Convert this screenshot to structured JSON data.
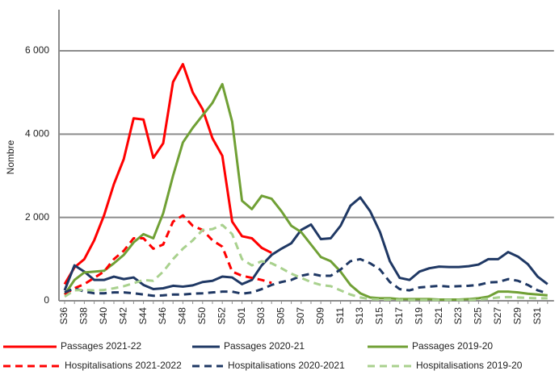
{
  "chart_data": {
    "type": "line",
    "y_label": "Nombre",
    "categories": [
      "S36",
      null,
      "S38",
      null,
      "S40",
      null,
      "S42",
      null,
      "S44",
      null,
      "S46",
      null,
      "S48",
      null,
      "S50",
      null,
      "S52",
      null,
      "S01",
      null,
      "S03",
      null,
      "S05",
      null,
      "S07",
      null,
      "S09",
      null,
      "S11",
      null,
      "S13",
      null,
      "S15",
      null,
      "S17",
      null,
      "S19",
      null,
      "S21",
      null,
      "S23",
      null,
      "S25",
      null,
      "S27",
      null,
      "S29",
      null,
      "S31",
      null
    ],
    "ylim": [
      0,
      6000
    ],
    "yticks": [
      {
        "value": 0,
        "label": "0"
      },
      {
        "value": 2000,
        "label": "2 000"
      },
      {
        "value": 4000,
        "label": "4 000"
      },
      {
        "value": 6000,
        "label": "6 000"
      }
    ],
    "grid": true,
    "legend": "bottom",
    "series": [
      {
        "name": "Passages 2021-22",
        "color": "#ff0000",
        "dashed": false,
        "values": [
          400,
          800,
          1000,
          1450,
          2050,
          2800,
          3400,
          4380,
          4350,
          3430,
          3780,
          5250,
          5680,
          5000,
          4600,
          3900,
          3480,
          1900,
          1550,
          1500,
          1270,
          1150,
          null,
          null,
          null,
          null,
          null,
          null,
          null,
          null,
          null,
          null,
          null,
          null,
          null,
          null,
          null,
          null,
          null,
          null,
          null,
          null,
          null,
          null,
          null,
          null,
          null,
          null,
          null,
          null
        ]
      },
      {
        "name": "Passages 2020-21",
        "color": "#1f3864",
        "dashed": false,
        "values": [
          250,
          850,
          700,
          500,
          500,
          580,
          520,
          560,
          380,
          280,
          300,
          360,
          340,
          370,
          450,
          480,
          580,
          560,
          400,
          500,
          850,
          1100,
          1250,
          1380,
          1700,
          1830,
          1480,
          1500,
          1800,
          2280,
          2480,
          2150,
          1650,
          950,
          550,
          500,
          700,
          780,
          820,
          810,
          810,
          830,
          870,
          1000,
          1000,
          1170,
          1060,
          880,
          580,
          400
        ]
      },
      {
        "name": "Passages 2019-20",
        "color": "#70a035",
        "dashed": false,
        "values": [
          150,
          500,
          680,
          700,
          720,
          900,
          1100,
          1400,
          1600,
          1500,
          2100,
          3000,
          3800,
          4150,
          4450,
          4750,
          5200,
          4300,
          2400,
          2200,
          2520,
          2450,
          2150,
          1800,
          1650,
          1350,
          1050,
          950,
          700,
          380,
          180,
          80,
          60,
          60,
          40,
          40,
          40,
          40,
          30,
          30,
          30,
          40,
          60,
          100,
          220,
          220,
          200,
          170,
          150,
          130
        ]
      },
      {
        "name": "Hospitalisations 2021-2022",
        "color": "#ff0000",
        "dashed": true,
        "values": [
          150,
          300,
          400,
          550,
          700,
          1000,
          1200,
          1500,
          1500,
          1250,
          1350,
          1900,
          2050,
          1800,
          1700,
          1450,
          1300,
          700,
          600,
          550,
          500,
          430,
          null,
          null,
          null,
          null,
          null,
          null,
          null,
          null,
          null,
          null,
          null,
          null,
          null,
          null,
          null,
          null,
          null,
          null,
          null,
          null,
          null,
          null,
          null,
          null,
          null,
          null,
          null,
          null
        ]
      },
      {
        "name": "Hospitalisations 2020-2021",
        "color": "#1f3864",
        "dashed": true,
        "values": [
          200,
          300,
          220,
          180,
          180,
          200,
          200,
          180,
          150,
          120,
          130,
          150,
          150,
          170,
          180,
          200,
          220,
          220,
          170,
          200,
          280,
          380,
          450,
          500,
          600,
          650,
          600,
          600,
          750,
          950,
          1000,
          900,
          750,
          450,
          280,
          250,
          320,
          340,
          360,
          340,
          350,
          360,
          380,
          440,
          450,
          520,
          480,
          380,
          250,
          180
        ]
      },
      {
        "name": "Hospitalisations 2019-20",
        "color": "#a9d18e",
        "dashed": true,
        "values": [
          100,
          250,
          260,
          250,
          260,
          300,
          350,
          420,
          500,
          480,
          700,
          1000,
          1250,
          1450,
          1700,
          1720,
          1820,
          1600,
          1000,
          850,
          950,
          900,
          780,
          650,
          550,
          450,
          380,
          350,
          250,
          150,
          80,
          40,
          30,
          30,
          20,
          20,
          20,
          20,
          20,
          20,
          20,
          20,
          30,
          50,
          80,
          90,
          80,
          70,
          60,
          60
        ]
      }
    ]
  }
}
